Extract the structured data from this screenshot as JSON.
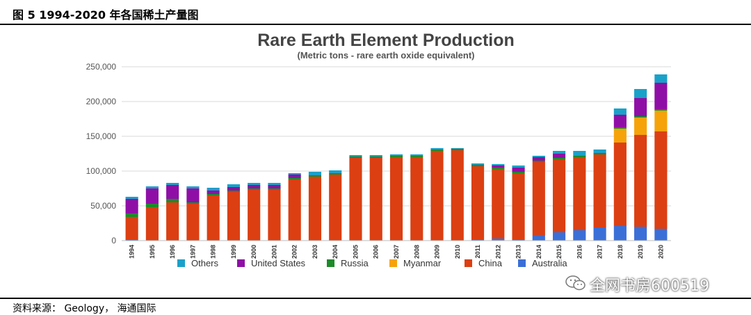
{
  "figure_caption": "图 5 1994-2020 年各国稀土产量图",
  "source_note": "资料来源： Geology， 海通国际",
  "watermark": "全网书房600519",
  "colors": {
    "Others": "#1aa1c9",
    "United States": "#8f0fa6",
    "Russia": "#1e8a2a",
    "Myanmar": "#f6a30a",
    "China": "#dc3f12",
    "Australia": "#3b6fd8"
  },
  "chart_data": {
    "type": "bar",
    "stacked": true,
    "title": "Rare Earth Element Production",
    "subtitle": "(Metric tons - rare earth oxide equivalent)",
    "xlabel": "",
    "ylabel": "",
    "ylim": [
      0,
      250000
    ],
    "yticks": [
      0,
      50000,
      100000,
      150000,
      200000,
      250000
    ],
    "ytick_labels": [
      "0",
      "50,000",
      "100,000",
      "150,000",
      "200,000",
      "250,000"
    ],
    "grid": true,
    "legend_position": "bottom",
    "legend_order": [
      "Others",
      "United States",
      "Russia",
      "Myanmar",
      "China",
      "Australia"
    ],
    "categories": [
      "1994",
      "1995",
      "1996",
      "1997",
      "1998",
      "1999",
      "2000",
      "2001",
      "2002",
      "2003",
      "2004",
      "2005",
      "2006",
      "2007",
      "2008",
      "2009",
      "2010",
      "2011",
      "2012",
      "2013",
      "2014",
      "2015",
      "2016",
      "2017",
      "2018",
      "2019",
      "2020"
    ],
    "series": [
      {
        "name": "Australia",
        "values": [
          2000,
          0,
          0,
          0,
          0,
          0,
          0,
          0,
          0,
          0,
          0,
          0,
          0,
          0,
          0,
          0,
          0,
          2000,
          3000,
          2000,
          8000,
          12000,
          15000,
          19000,
          21000,
          20000,
          17000
        ]
      },
      {
        "name": "China",
        "values": [
          32000,
          48000,
          55000,
          53000,
          65000,
          70000,
          73000,
          73000,
          88000,
          92000,
          95000,
          119000,
          119000,
          120000,
          120000,
          129000,
          130000,
          105000,
          100000,
          95000,
          105000,
          105000,
          105000,
          105000,
          120000,
          132000,
          140000
        ]
      },
      {
        "name": "Myanmar",
        "values": [
          0,
          0,
          0,
          0,
          0,
          0,
          0,
          0,
          0,
          0,
          0,
          0,
          0,
          0,
          0,
          0,
          0,
          0,
          0,
          0,
          0,
          0,
          0,
          0,
          20000,
          25000,
          30000
        ]
      },
      {
        "name": "Russia",
        "values": [
          5000,
          5000,
          5000,
          2000,
          2000,
          2000,
          2000,
          2000,
          2000,
          2000,
          2000,
          2000,
          2000,
          2000,
          2000,
          2000,
          2000,
          2000,
          2000,
          2000,
          2000,
          2000,
          2000,
          2000,
          2000,
          2000,
          2000
        ]
      },
      {
        "name": "United States",
        "values": [
          21000,
          22000,
          20000,
          20000,
          5000,
          5000,
          5000,
          5000,
          5000,
          0,
          0,
          0,
          0,
          0,
          0,
          0,
          0,
          0,
          3000,
          6000,
          5000,
          6000,
          0,
          0,
          18000,
          26000,
          38000
        ]
      },
      {
        "name": "Others",
        "values": [
          3000,
          3000,
          3000,
          3000,
          4000,
          4000,
          3000,
          3000,
          2000,
          5000,
          4000,
          2000,
          2000,
          2000,
          2000,
          2000,
          1000,
          2000,
          2000,
          3000,
          2000,
          4000,
          7000,
          5000,
          9000,
          13000,
          12000
        ]
      }
    ]
  }
}
